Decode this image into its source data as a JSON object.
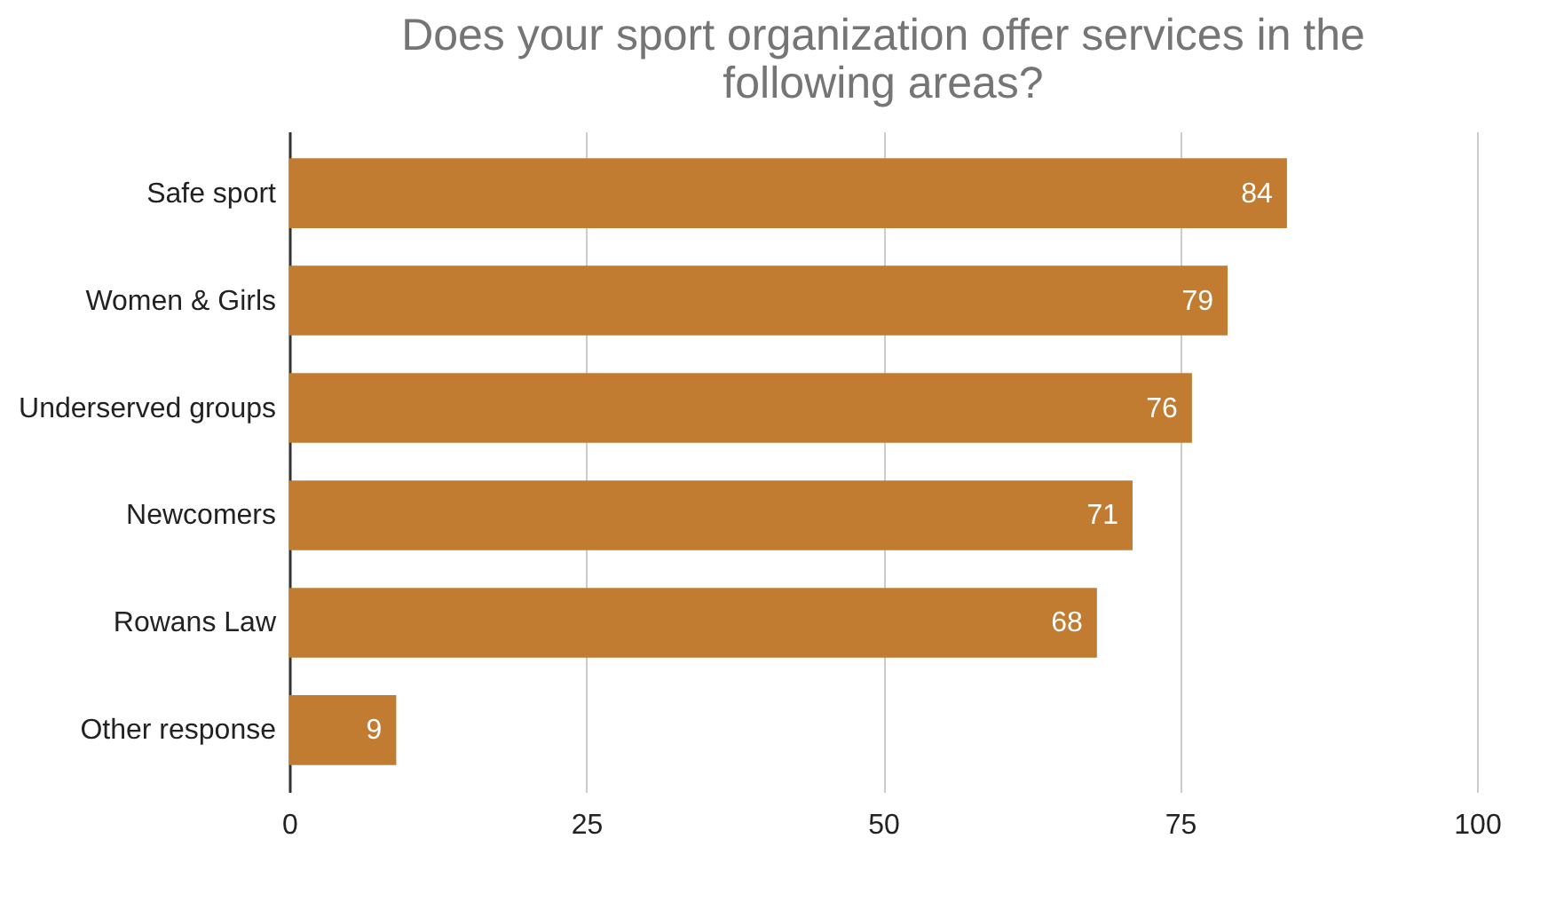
{
  "chart_data": {
    "type": "bar",
    "orientation": "horizontal",
    "title": "Does your sport organization offer services in the following areas?",
    "categories": [
      "Safe sport",
      "Women & Girls",
      "Underserved groups",
      "Newcomers",
      "Rowans Law",
      "Other response"
    ],
    "series": [
      {
        "color": "#c27c32",
        "values": [
          84,
          79,
          76,
          71,
          68,
          9
        ]
      }
    ],
    "xlim": [
      0,
      100
    ],
    "xticks": [
      0,
      25,
      50,
      75,
      100
    ],
    "grid": "x",
    "data_labels": true
  }
}
